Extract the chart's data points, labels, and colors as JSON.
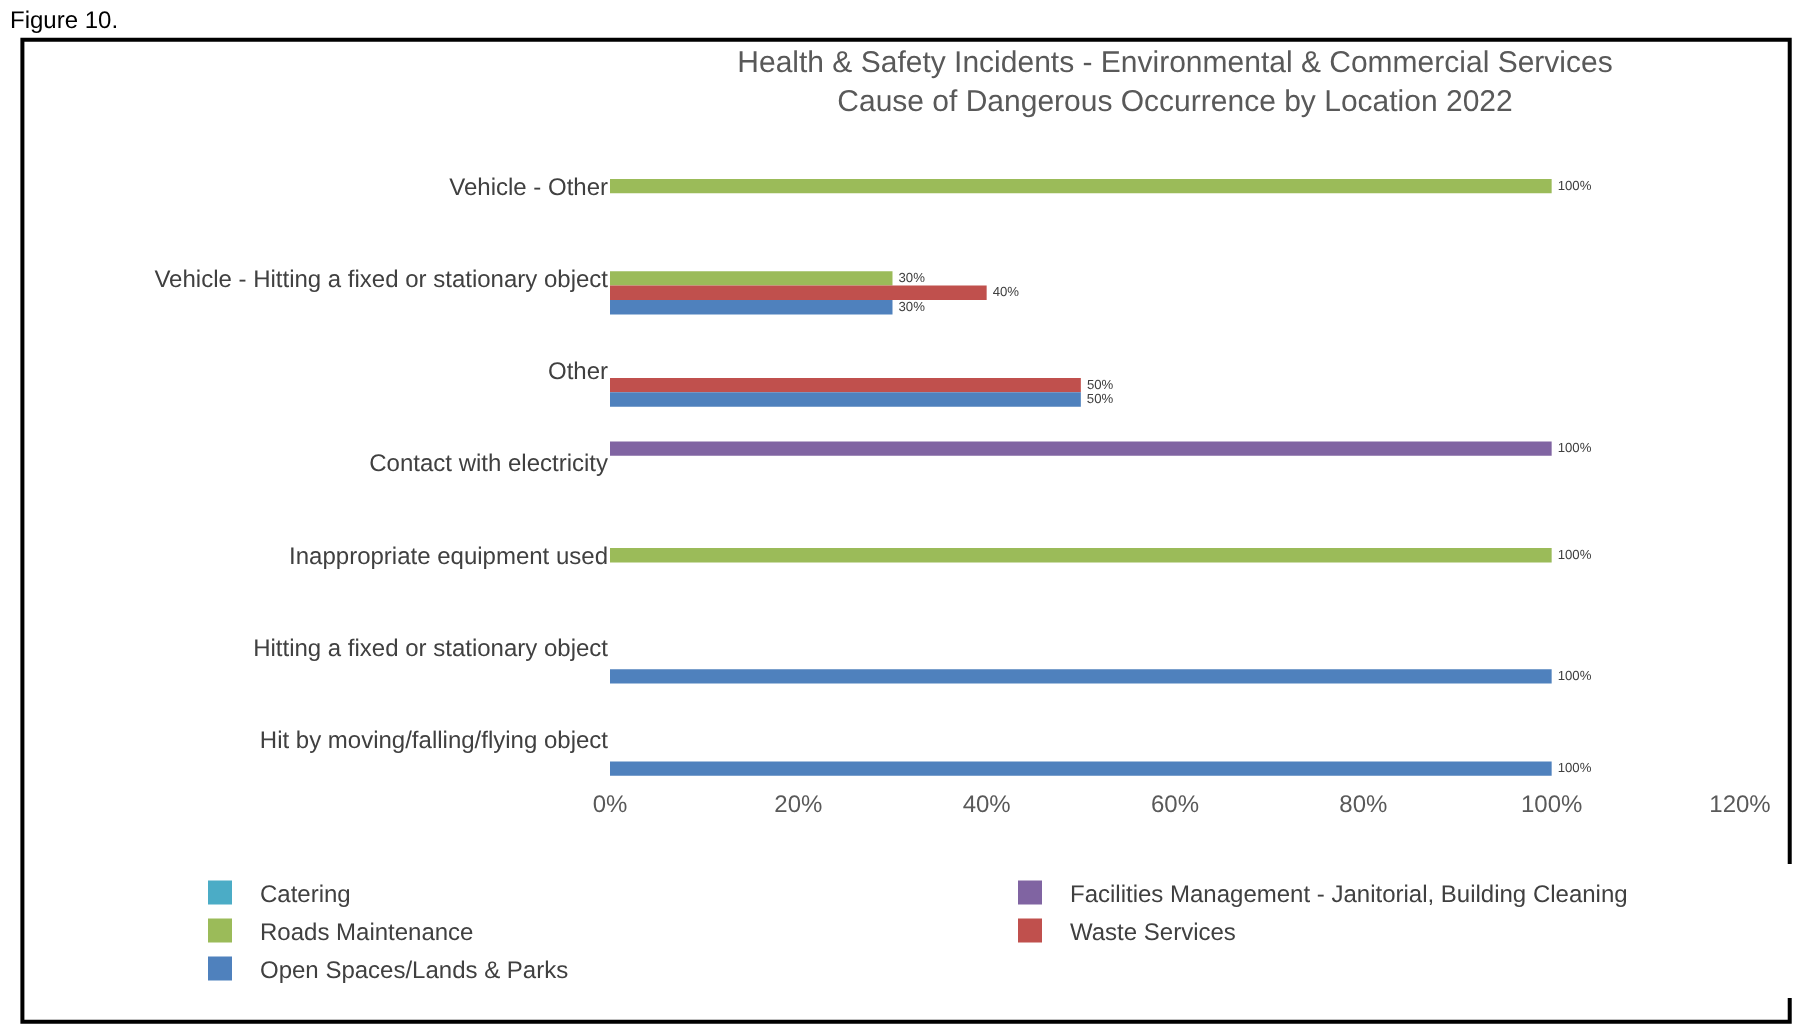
{
  "chart_data": {
    "type": "bar",
    "orientation": "horizontal",
    "title": "Health & Safety Incidents - Environmental & Commercial Services\nCause of Dangerous Occurrence by Location 2022",
    "annotations": [
      "Figure 10."
    ],
    "categories": [
      "Vehicle - Other",
      "Vehicle - Hitting a fixed or stationary object",
      "Other",
      "Contact with electricity",
      "Inappropriate equipment used",
      "Hitting a fixed or stationary object",
      "Hit by moving/falling/flying object"
    ],
    "series": [
      {
        "name": "Catering",
        "color": "#4bacc6",
        "values": [
          null,
          null,
          null,
          null,
          null,
          null,
          null
        ],
        "value_labels": [
          null,
          null,
          null,
          null,
          null,
          null,
          null
        ]
      },
      {
        "name": "Facilities Management - Janitorial, Building Cleaning",
        "color": "#8064a2",
        "values": [
          null,
          null,
          null,
          100,
          null,
          null,
          null
        ],
        "value_labels": [
          null,
          null,
          null,
          "100%",
          null,
          null,
          null
        ]
      },
      {
        "name": "Roads Maintenance",
        "color": "#9bbb59",
        "values": [
          100,
          30,
          null,
          null,
          100,
          null,
          null
        ],
        "value_labels": [
          "100%",
          "30%",
          null,
          null,
          "100%",
          null,
          null
        ]
      },
      {
        "name": "Waste Services",
        "color": "#c0504d",
        "values": [
          null,
          40,
          50,
          null,
          null,
          null,
          null
        ],
        "value_labels": [
          null,
          "40%",
          "50%",
          null,
          null,
          null,
          null
        ]
      },
      {
        "name": "Open Spaces/Lands & Parks",
        "color": "#4f81bd",
        "values": [
          null,
          30,
          50,
          null,
          null,
          100,
          100
        ],
        "value_labels": [
          null,
          "30%",
          "50%",
          null,
          null,
          "100%",
          "100%"
        ]
      }
    ],
    "xlim": [
      0,
      120
    ],
    "xticks": [
      {
        "value": 0,
        "label": "0%"
      },
      {
        "value": 20,
        "label": "20%"
      },
      {
        "value": 40,
        "label": "40%"
      },
      {
        "value": 60,
        "label": "60%"
      },
      {
        "value": 80,
        "label": "80%"
      },
      {
        "value": 100,
        "label": "100%"
      },
      {
        "value": 120,
        "label": "120%"
      }
    ],
    "grid": false,
    "legend": "bottom"
  }
}
